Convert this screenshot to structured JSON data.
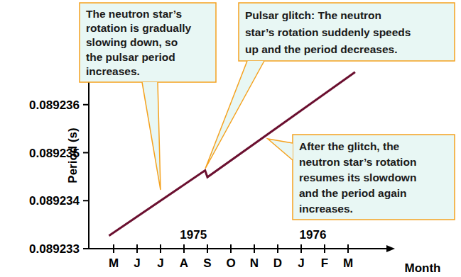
{
  "chart_data": {
    "type": "line",
    "y_label": "Period (s)",
    "x_label": "Month",
    "color": "#6b1030",
    "x": [
      -0.2,
      3.9,
      4.0,
      10.3
    ],
    "values": [
      0.08923327,
      0.08923463,
      0.08923449,
      0.08923668
    ],
    "xlim": [
      -1,
      12
    ],
    "ylim": [
      0.089233,
      0.089237
    ],
    "xticks": [
      {
        "value": 0,
        "label": "M"
      },
      {
        "value": 1,
        "label": "J"
      },
      {
        "value": 2,
        "label": "J"
      },
      {
        "value": 3,
        "label": "A"
      },
      {
        "value": 4,
        "label": "S"
      },
      {
        "value": 5,
        "label": "O"
      },
      {
        "value": 6,
        "label": "N"
      },
      {
        "value": 7,
        "label": "D"
      },
      {
        "value": 8,
        "label": "J"
      },
      {
        "value": 9,
        "label": "F"
      },
      {
        "value": 10,
        "label": "M"
      }
    ],
    "yticks": [
      0.089233,
      0.089234,
      0.089235,
      0.089236
    ],
    "year_labels": [
      {
        "value": 3.4,
        "label": "1975"
      },
      {
        "value": 8.5,
        "label": "1976"
      }
    ],
    "annotations": [
      {
        "lines": [
          "The neutron star’s",
          "rotation is gradually",
          "slowing down, so",
          "the pulsar period",
          "increases."
        ]
      },
      {
        "lines": [
          "Pulsar glitch: The neutron",
          "star’s rotation suddenly speeds",
          "up and the period decreases."
        ]
      },
      {
        "lines": [
          "After the glitch, the",
          "neutron star’s rotation",
          "resumes its slowdown",
          "and the period again",
          "increases."
        ]
      }
    ]
  }
}
